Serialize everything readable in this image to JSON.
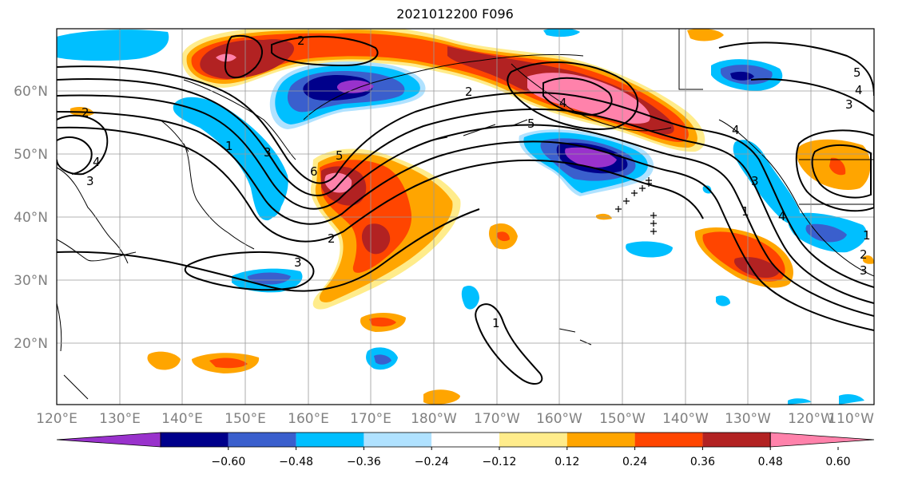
{
  "title": "2021012200 F096",
  "map": {
    "lon_labels": [
      "120°E",
      "130°E",
      "140°E",
      "150°E",
      "160°E",
      "170°E",
      "180°W",
      "170°W",
      "160°W",
      "150°W",
      "140°W",
      "130°W",
      "120°W",
      "110°W"
    ],
    "lat_labels": [
      "20°N",
      "30°N",
      "40°N",
      "50°N",
      "60°N"
    ],
    "contour_labels": [
      "2",
      "3",
      "4",
      "1",
      "2",
      "3",
      "6",
      "5",
      "2",
      "3",
      "2",
      "5",
      "4",
      "1",
      "1",
      "3",
      "4",
      "5",
      "4",
      "3",
      "1",
      "2",
      "3",
      "4"
    ]
  },
  "colorbar": {
    "labels": [
      "−0.60",
      "−0.48",
      "−0.36",
      "−0.24",
      "−0.12",
      "0.12",
      "0.24",
      "0.36",
      "0.48",
      "0.60"
    ],
    "colors": [
      "#9932cc",
      "#00008b",
      "#3a5fcd",
      "#00bfff",
      "#b0e2ff",
      "#ffffff",
      "#ffec8b",
      "#ffa500",
      "#ff4500",
      "#b22222",
      "#ff82ab"
    ]
  }
}
